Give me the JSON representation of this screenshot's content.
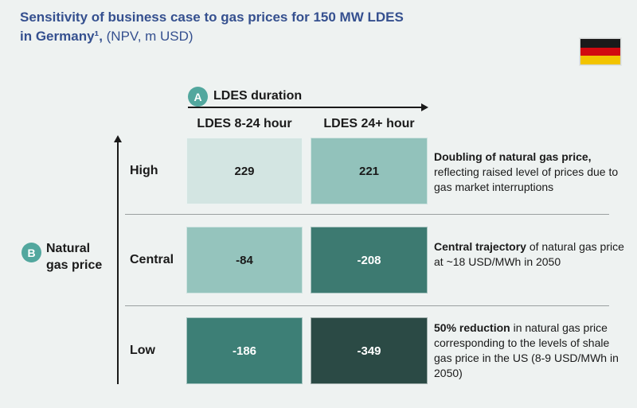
{
  "colors": {
    "accent_badge": "#52a79e",
    "title_blue": "#35508f",
    "cell_lightest": "#d3e5e2",
    "cell_light": "#94c3bc",
    "cell_medium": "#3d7b72",
    "cell_dark": "#2b4a45",
    "divider_gray": "#9aa0a0"
  },
  "title": {
    "line1": "Sensitivity of business case to gas prices for 150 MW LDES",
    "line2_bold": "in Germany¹,",
    "line2_regular": " (NPV, m USD)"
  },
  "flag": {
    "name": "germany-flag",
    "stripes": [
      "#1a1a1a",
      "#d10a10",
      "#f2c400"
    ]
  },
  "axis_a": {
    "badge": "A",
    "label": "LDES duration"
  },
  "axis_b": {
    "badge": "B",
    "label_line1": "Natural",
    "label_line2": "gas price"
  },
  "columns": [
    "LDES 8-24 hour",
    "LDES 24+ hour"
  ],
  "rows": [
    {
      "label": "High",
      "cells": [
        {
          "value": "229",
          "bg": "#d3e5e2",
          "fg": "#1a1a1a"
        },
        {
          "value": "221",
          "bg": "#92c2bb",
          "fg": "#1a1a1a"
        }
      ],
      "annotation": {
        "bold": "Doubling of natural gas price,",
        "regular": " reflecting raised level of prices due to gas market interruptions"
      }
    },
    {
      "label": "Central",
      "cells": [
        {
          "value": "-84",
          "bg": "#95c4bd",
          "fg": "#1a1a1a"
        },
        {
          "value": "-208",
          "bg": "#3d7a71",
          "fg": "#ffffff"
        }
      ],
      "annotation": {
        "bold": "Central trajectory",
        "regular": " of natural gas price at ~18 USD/MWh in 2050"
      }
    },
    {
      "label": "Low",
      "cells": [
        {
          "value": "-186",
          "bg": "#3d7f76",
          "fg": "#ffffff"
        },
        {
          "value": "-349",
          "bg": "#2b4a45",
          "fg": "#ffffff"
        }
      ],
      "annotation": {
        "bold": "50% reduction",
        "regular": " in natural gas price corresponding to the levels  of shale gas price in the US (8-9 USD/MWh in 2050)"
      }
    }
  ],
  "chart_data": {
    "type": "heatmap",
    "title": "Sensitivity of business case to gas prices for 150 MW LDES in Germany¹, (NPV, m USD)",
    "x_axis_label": "LDES duration",
    "y_axis_label": "Natural gas price",
    "x_categories": [
      "LDES 8-24 hour",
      "LDES 24+ hour"
    ],
    "y_categories": [
      "High",
      "Central",
      "Low"
    ],
    "values": [
      [
        229,
        221
      ],
      [
        -84,
        -208
      ],
      [
        -186,
        -349
      ]
    ],
    "unit": "NPV, m USD",
    "legend_position": "none",
    "grid": false,
    "annotations": [
      "Doubling of natural gas price, reflecting raised level of prices due to gas market interruptions",
      "Central trajectory of natural gas price at ~18 USD/MWh in 2050",
      "50% reduction in natural gas price corresponding to the levels  of shale gas price in the US (8-9 USD/MWh in 2050)"
    ]
  }
}
